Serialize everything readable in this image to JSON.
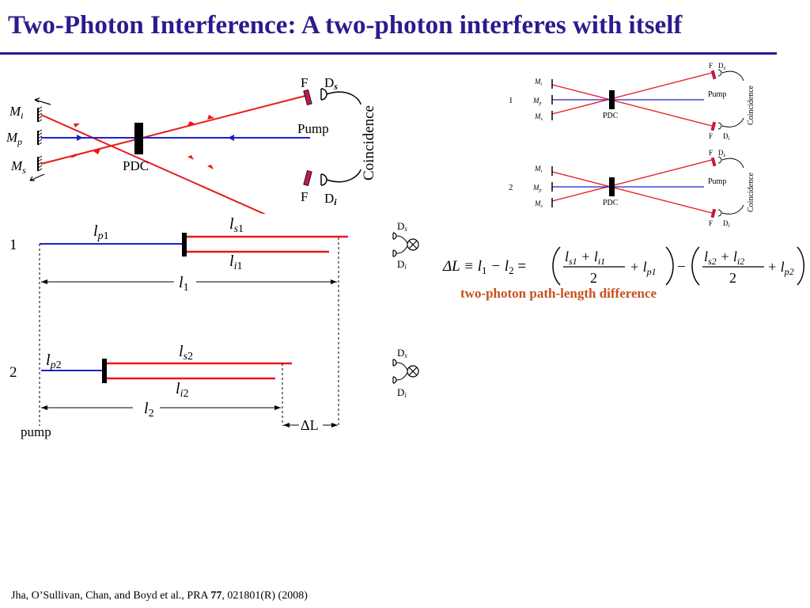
{
  "title": "Two-Photon Interference: A two-photon interferes with itself",
  "setup_diagram": {
    "mirror_i": "M",
    "mirror_i_sub": "i",
    "mirror_p": "M",
    "mirror_p_sub": "p",
    "mirror_s": "M",
    "mirror_s_sub": "s",
    "crystal": "PDC",
    "filter_top": "F",
    "filter_bottom": "F",
    "detector_s": "D",
    "detector_s_sub": "s",
    "detector_i": "D",
    "detector_i_sub": "i",
    "pump": "Pump",
    "coincidence": "Coincidence"
  },
  "small_diagrams": [
    {
      "label": "1"
    },
    {
      "label": "2"
    }
  ],
  "path_diagram": {
    "row1_label": "1",
    "row2_label": "2",
    "lp1": "l",
    "lp1_sub": "p",
    "lp1_num": "1",
    "ls1": "l",
    "ls1_sub": "s",
    "ls1_num": "1",
    "li1": "l",
    "li1_sub": "i",
    "li1_num": "1",
    "l1": "l",
    "l1_num": "1",
    "lp2": "l",
    "lp2_sub": "p",
    "lp2_num": "2",
    "ls2": "l",
    "ls2_sub": "s",
    "ls2_num": "2",
    "li2": "l",
    "li2_sub": "i",
    "li2_num": "2",
    "l2": "l",
    "l2_num": "2",
    "delta_l": "ΔL",
    "pump": "pump",
    "detector_s": "D",
    "detector_s_sub": "s",
    "detector_i": "D",
    "detector_i_sub": "i"
  },
  "equation": {
    "lhs": "ΔL ≡ l",
    "sub1": "1",
    "minus": " − l",
    "sub2": "2",
    "eq": " = ",
    "num1": "l",
    "num1_s": "s1",
    "num1_plus": " + l",
    "num1_i": "i1",
    "den": "2",
    "plus1": "+ l",
    "p1": "p1",
    "num2": "l",
    "num2_s": "s2",
    "num2_plus": " + l",
    "num2_i": "i2",
    "plus2": "+ l",
    "p2": "p2",
    "minus_mid": "−"
  },
  "caption": "two-photon path-length difference",
  "citation": {
    "authors": "Jha, O’Sullivan, Chan, and Boyd et al.,  PRA ",
    "volume": "77",
    "rest": ", 021801(R)  (2008)"
  },
  "colors": {
    "title": "#2e1a8c",
    "signal_idler": "#e8191c",
    "pump": "#1a23c8",
    "caption": "#c8501e",
    "filter": "#c0184a"
  }
}
